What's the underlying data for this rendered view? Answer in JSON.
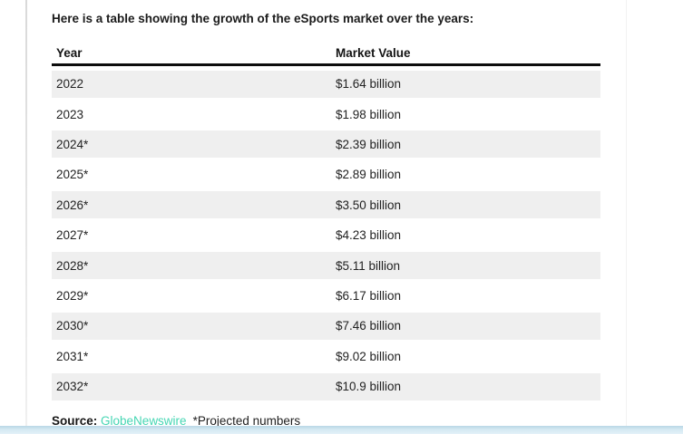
{
  "page": {
    "intro_text": "Here is a table showing the growth of the eSports market over the years:",
    "source": {
      "label": "Source:",
      "link_text": "GlobeNewswire",
      "note": "*Projected numbers"
    }
  },
  "table": {
    "columns": [
      "Year",
      "Market Value"
    ],
    "rows": [
      [
        "2022",
        "$1.64 billion"
      ],
      [
        "2023",
        "$1.98 billion"
      ],
      [
        "2024*",
        "$2.39 billion"
      ],
      [
        "2025*",
        "$2.89 billion"
      ],
      [
        "2026*",
        "$3.50 billion"
      ],
      [
        "2027*",
        "$4.23 billion"
      ],
      [
        "2028*",
        "$5.11 billion"
      ],
      [
        "2029*",
        "$6.17 billion"
      ],
      [
        "2030*",
        "$7.46 billion"
      ],
      [
        "2031*",
        "$9.02 billion"
      ],
      [
        "2032*",
        "$10.9 billion"
      ]
    ]
  },
  "chart_data": {
    "type": "table",
    "title": "Growth of the eSports market over the years",
    "columns": [
      "Year",
      "Market Value"
    ],
    "categories": [
      "2022",
      "2023",
      "2024*",
      "2025*",
      "2026*",
      "2027*",
      "2028*",
      "2029*",
      "2030*",
      "2031*",
      "2032*"
    ],
    "values_billion_usd": [
      1.64,
      1.98,
      2.39,
      2.89,
      3.5,
      4.23,
      5.11,
      6.17,
      7.46,
      9.02,
      10.9
    ],
    "value_labels": [
      "$1.64 billion",
      "$1.98 billion",
      "$2.39 billion",
      "$2.89 billion",
      "$3.50 billion",
      "$4.23 billion",
      "$5.11 billion",
      "$6.17 billion",
      "$7.46 billion",
      "$9.02 billion",
      "$10.9 billion"
    ],
    "source": "GlobeNewswire",
    "note": "*Projected numbers means 2024 onward are projections"
  },
  "colors": {
    "row_shade": "#efefef",
    "header_border": "#0d0d0d",
    "link_teal": "#45d6b3",
    "bottom_bar": "#d5e9f2"
  }
}
